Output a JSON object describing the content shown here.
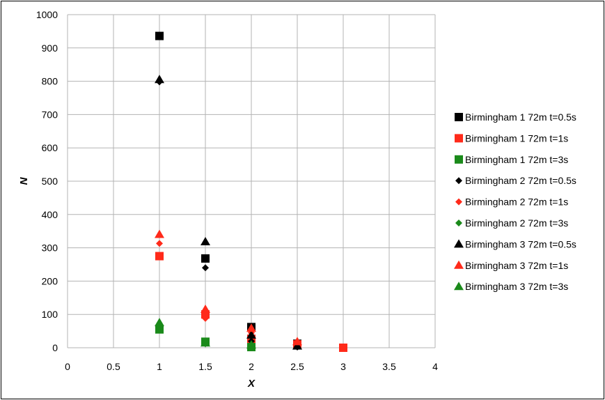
{
  "chart_data": {
    "type": "scatter",
    "title": "",
    "xlabel": "X",
    "ylabel": "N",
    "xlim": [
      0,
      4
    ],
    "ylim": [
      0,
      1000
    ],
    "xticks": [
      0,
      0.5,
      1,
      1.5,
      2,
      2.5,
      3,
      3.5,
      4
    ],
    "yticks": [
      0,
      100,
      200,
      300,
      400,
      500,
      600,
      700,
      800,
      900,
      1000
    ],
    "grid": true,
    "legend_position": "right",
    "series": [
      {
        "name": "Birmingham 1 72m t=0.5s",
        "marker": "square",
        "color": "#000000",
        "points": [
          [
            1,
            936
          ],
          [
            1.5,
            268
          ],
          [
            2,
            62
          ],
          [
            2.5,
            12
          ]
        ]
      },
      {
        "name": "Birmingham 1 72m t=1s",
        "marker": "square",
        "color": "#ff2a1a",
        "points": [
          [
            1,
            275
          ],
          [
            1.5,
            100
          ],
          [
            2,
            27
          ],
          [
            2.5,
            10
          ],
          [
            3,
            0
          ]
        ]
      },
      {
        "name": "Birmingham 1 72m t=3s",
        "marker": "square",
        "color": "#1a8a1a",
        "points": [
          [
            1,
            55
          ],
          [
            1.5,
            18
          ],
          [
            2,
            2
          ]
        ]
      },
      {
        "name": "Birmingham 2 72m t=0.5s",
        "marker": "diamond",
        "color": "#000000",
        "points": [
          [
            1,
            798
          ],
          [
            1.5,
            240
          ],
          [
            2,
            20
          ],
          [
            2.5,
            2
          ]
        ]
      },
      {
        "name": "Birmingham 2 72m t=1s",
        "marker": "diamond",
        "color": "#ff2a1a",
        "points": [
          [
            1,
            313
          ],
          [
            1.5,
            88
          ],
          [
            2,
            45
          ],
          [
            2.5,
            8
          ]
        ]
      },
      {
        "name": "Birmingham 2 72m t=3s",
        "marker": "diamond",
        "color": "#1a8a1a",
        "points": [
          [
            1,
            62
          ],
          [
            1.5,
            12
          ],
          [
            2,
            4
          ]
        ]
      },
      {
        "name": "Birmingham 3 72m t=0.5s",
        "marker": "triangle",
        "color": "#000000",
        "points": [
          [
            1,
            805
          ],
          [
            1.5,
            318
          ],
          [
            2,
            38
          ],
          [
            2.5,
            5
          ]
        ]
      },
      {
        "name": "Birmingham 3 72m t=1s",
        "marker": "triangle",
        "color": "#ff2a1a",
        "points": [
          [
            1,
            340
          ],
          [
            1.5,
            115
          ],
          [
            2,
            58
          ],
          [
            2.5,
            18
          ]
        ]
      },
      {
        "name": "Birmingham 3 72m t=3s",
        "marker": "triangle",
        "color": "#1a8a1a",
        "points": [
          [
            1,
            75
          ],
          [
            1.5,
            14
          ],
          [
            2,
            8
          ]
        ]
      }
    ]
  }
}
